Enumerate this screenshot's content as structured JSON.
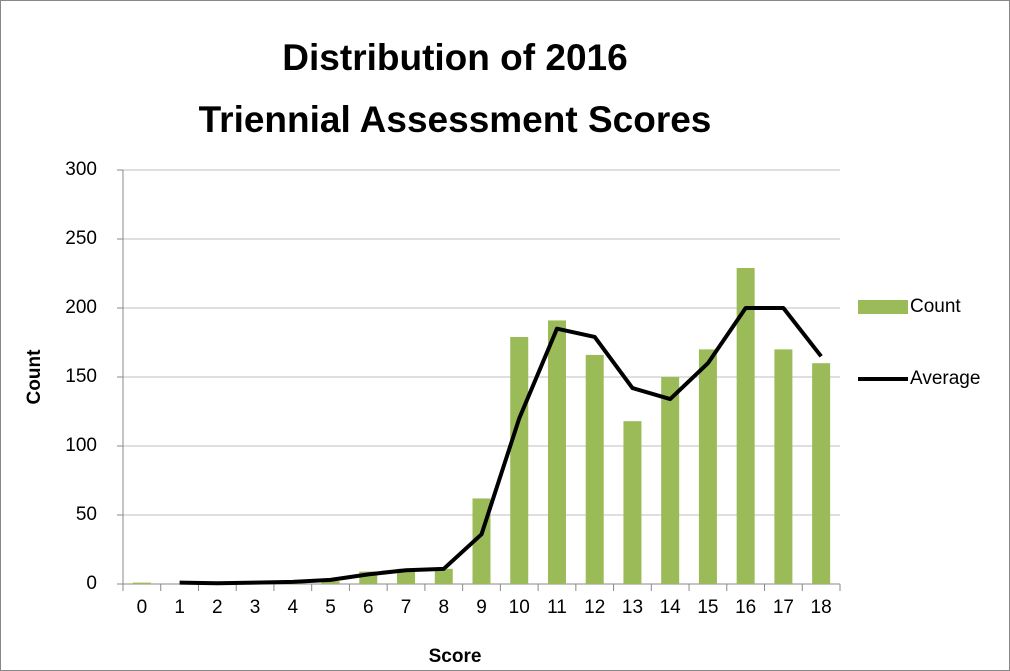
{
  "chart_data": {
    "type": "bar",
    "title": [
      "Distribution of 2016",
      "Triennial Assessment Scores"
    ],
    "x_label": "Score",
    "y_label": "Count",
    "categories": [
      "0",
      "1",
      "2",
      "3",
      "4",
      "5",
      "6",
      "7",
      "8",
      "9",
      "10",
      "11",
      "12",
      "13",
      "14",
      "15",
      "16",
      "17",
      "18"
    ],
    "series": [
      {
        "name": "Count",
        "type": "bar",
        "color": "#9bbb59",
        "values": [
          1,
          0,
          0,
          1,
          1,
          2,
          9,
          11,
          11,
          62,
          179,
          191,
          166,
          118,
          150,
          170,
          229,
          170,
          160
        ]
      },
      {
        "name": "Average",
        "type": "line",
        "color": "#000000",
        "values": [
          null,
          1,
          0.5,
          1,
          1.5,
          3,
          7,
          10,
          11,
          36,
          120,
          185,
          179,
          142,
          134,
          160,
          200,
          200,
          165
        ]
      }
    ],
    "ylim": [
      0,
      300
    ],
    "yticks": [
      0,
      50,
      100,
      150,
      200,
      250,
      300
    ],
    "grid": true,
    "legend": "right"
  }
}
